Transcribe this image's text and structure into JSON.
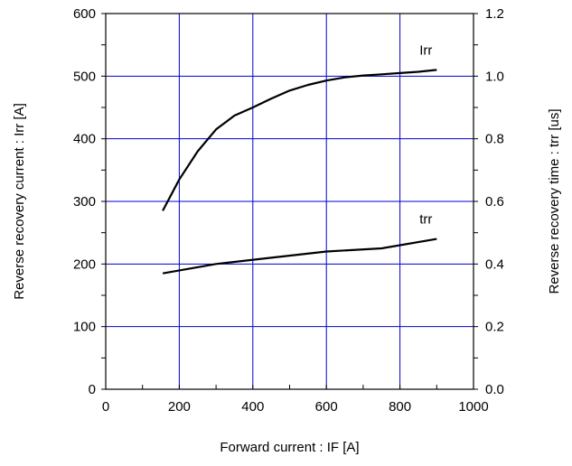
{
  "chart_data": {
    "type": "line",
    "xlabel": "Forward current : IF [A]",
    "ylabel": "Reverse recovery current : Irr [A]",
    "y2label": "Reverse recovery time : trr [us]",
    "xlim": [
      0,
      1000
    ],
    "ylim": [
      0,
      600
    ],
    "y2lim": [
      0.0,
      1.2
    ],
    "xticks": [
      "0",
      "200",
      "400",
      "600",
      "800",
      "1000"
    ],
    "yticks": [
      "0",
      "100",
      "200",
      "300",
      "400",
      "500",
      "600"
    ],
    "y2ticks": [
      "0.0",
      "0.2",
      "0.4",
      "0.6",
      "0.8",
      "1.0",
      "1.2"
    ],
    "grid": true,
    "grid_color": "#0000cc",
    "series": [
      {
        "name": "Irr",
        "axis": "left",
        "x": [
          155,
          200,
          250,
          300,
          350,
          400,
          450,
          500,
          550,
          600,
          650,
          700,
          750,
          800,
          850,
          900
        ],
        "y": [
          285,
          335,
          380,
          415,
          437,
          450,
          464,
          477,
          486,
          493,
          498,
          501,
          503,
          505,
          507,
          510
        ]
      },
      {
        "name": "trr",
        "axis": "right",
        "x": [
          155,
          300,
          450,
          600,
          750,
          900
        ],
        "y": [
          0.37,
          0.4,
          0.42,
          0.44,
          0.45,
          0.48
        ]
      }
    ]
  }
}
